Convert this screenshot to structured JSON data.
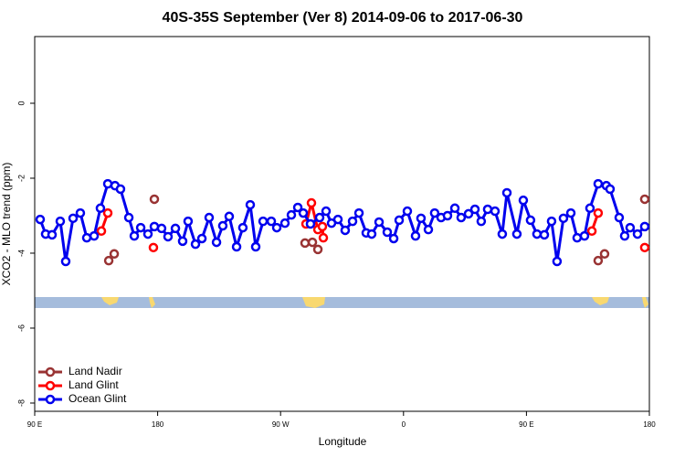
{
  "chart_data": {
    "type": "line",
    "title": "40S-35S September (Ver 8)   2014-09-06 to 2017-06-30",
    "x_label": "Longitude",
    "y_label": "XCO2 - MLO trend (ppm)",
    "xlim": [
      90,
      540
    ],
    "xticks": [
      {
        "value": 90,
        "label": "90 E"
      },
      {
        "value": 180,
        "label": "180"
      },
      {
        "value": 270,
        "label": "90 W"
      },
      {
        "value": 360,
        "label": "0"
      },
      {
        "value": 450,
        "label": "90 E"
      },
      {
        "value": 540,
        "label": "180"
      }
    ],
    "ylim": [
      -8.22,
      1.78
    ],
    "yticks": [
      -8,
      -6,
      -4,
      -2,
      0
    ],
    "legend": "bottom-left",
    "series": [
      {
        "name": "Land Nadir",
        "color": "#993333",
        "x": [
          144.2,
          148.2,
          null,
          177.6,
          null,
          287.9,
          293.3,
          297.3,
          null,
          502.5,
          507.2,
          null,
          536.6
        ],
        "values": [
          -4.2,
          -4.02,
          null,
          -2.56,
          null,
          -3.73,
          -3.71,
          -3.9,
          null,
          -4.2,
          -4.02,
          null,
          -2.56
        ]
      },
      {
        "name": "Land Glint",
        "color": "#ff0000",
        "x": [
          138.8,
          143.5,
          null,
          176.9,
          null,
          288.6,
          292.6,
          297.3,
          300.6,
          301.3,
          null,
          497.9,
          502.5,
          null,
          536.6
        ],
        "values": [
          -3.41,
          -2.93,
          null,
          -3.85,
          null,
          -3.22,
          -2.66,
          -3.37,
          -3.29,
          -3.59,
          null,
          -3.41,
          -2.93,
          null,
          -3.85
        ]
      },
      {
        "name": "Ocean Glint",
        "color": "#0000ee",
        "x": [
          94.0,
          98.0,
          102.7,
          108.7,
          112.7,
          118.1,
          123.4,
          128.1,
          133.5,
          138.1,
          143.5,
          148.8,
          152.8,
          158.9,
          162.9,
          167.6,
          172.9,
          177.6,
          182.9,
          187.6,
          193.0,
          198.3,
          202.3,
          207.7,
          212.4,
          217.7,
          223.1,
          227.7,
          232.4,
          237.8,
          242.4,
          247.8,
          251.8,
          257.2,
          263.2,
          267.2,
          273.2,
          277.9,
          282.6,
          286.6,
          291.9,
          298.6,
          303.3,
          307.3,
          312.0,
          317.3,
          322.7,
          327.4,
          332.7,
          336.7,
          342.1,
          348.1,
          352.8,
          356.8,
          362.8,
          368.8,
          372.8,
          378.2,
          382.8,
          387.5,
          392.2,
          397.6,
          402.2,
          407.6,
          412.3,
          416.9,
          421.6,
          427.0,
          432.3,
          435.7,
          443.0,
          447.7,
          453.0,
          457.7,
          463.1,
          468.4,
          472.4,
          477.1,
          482.5,
          487.1,
          492.5,
          496.5,
          502.5,
          508.5,
          511.2,
          517.9,
          521.9,
          525.9,
          531.3,
          536.6
        ],
        "values": [
          -3.1,
          -3.49,
          -3.51,
          -3.15,
          -4.22,
          -3.07,
          -2.93,
          -3.59,
          -3.54,
          -2.8,
          -2.15,
          -2.2,
          -2.29,
          -3.05,
          -3.54,
          -3.32,
          -3.49,
          -3.29,
          -3.34,
          -3.56,
          -3.34,
          -3.68,
          -3.15,
          -3.76,
          -3.61,
          -3.05,
          -3.71,
          -3.27,
          -3.02,
          -3.83,
          -3.32,
          -2.71,
          -3.83,
          -3.15,
          -3.15,
          -3.32,
          -3.2,
          -2.98,
          -2.78,
          -2.93,
          -3.22,
          -3.05,
          -2.88,
          -3.2,
          -3.1,
          -3.39,
          -3.15,
          -2.93,
          -3.46,
          -3.49,
          -3.17,
          -3.44,
          -3.61,
          -3.12,
          -2.88,
          -3.54,
          -3.07,
          -3.37,
          -2.93,
          -3.05,
          -3.0,
          -2.8,
          -3.05,
          -2.95,
          -2.83,
          -3.15,
          -2.83,
          -2.88,
          -3.49,
          -2.39,
          -3.49,
          -2.59,
          -3.12,
          -3.49,
          -3.51,
          -3.15,
          -4.22,
          -3.07,
          -2.93,
          -3.59,
          -3.54,
          -2.8,
          -2.15,
          -2.2,
          -2.29,
          -3.05,
          -3.54,
          -3.32,
          -3.49,
          -3.29
        ]
      }
    ]
  }
}
